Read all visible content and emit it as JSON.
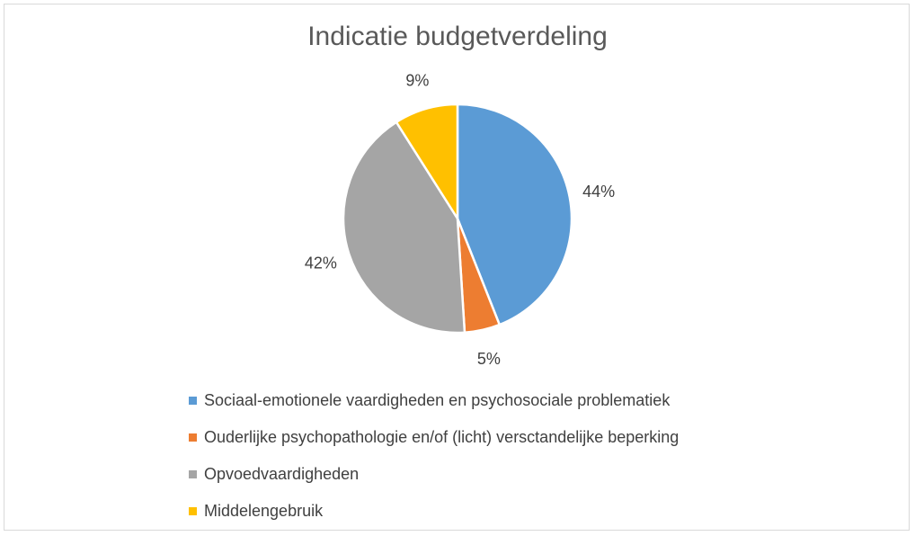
{
  "chart_data": {
    "type": "pie",
    "title": "Indicatie budgetverdeling",
    "categories": [
      "Sociaal-emotionele vaardigheden en psychosociale problematiek",
      "Ouderlijke psychopathologie en/of (licht) versctandelijke beperking",
      "Opvoedvaardigheden",
      "Middelengebruik"
    ],
    "values": [
      44,
      5,
      42,
      9
    ],
    "data_labels": [
      "44%",
      "5%",
      "42%",
      "9%"
    ],
    "colors": [
      "#5b9bd5",
      "#ed7d31",
      "#a5a5a5",
      "#ffc000"
    ],
    "legend_position": "bottom"
  }
}
